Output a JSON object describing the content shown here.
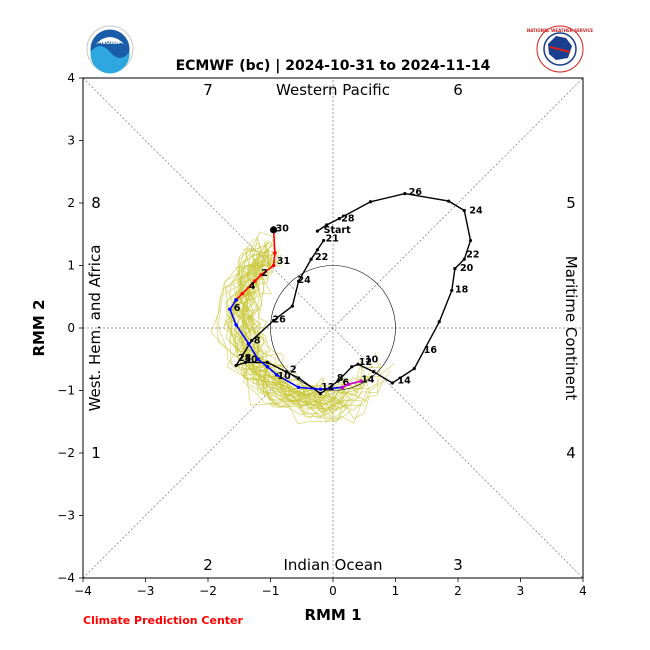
{
  "header": {
    "title": "ECMWF (bc) | 2024-10-31 to 2024-11-14"
  },
  "logos": {
    "left": {
      "icon": "noaa-logo-icon",
      "text": "NOAA"
    },
    "right": {
      "icon": "nws-logo-icon",
      "text": "NATIONAL WEATHER SERVICE"
    }
  },
  "footer": {
    "credit": "Climate Prediction Center",
    "credit_color": "#ff0000"
  },
  "chart_data": {
    "type": "line",
    "title": "ECMWF (bc) | 2024-10-31 to 2024-11-14",
    "xlabel": "RMM 1",
    "ylabel": "RMM 2",
    "xlim": [
      -4,
      4
    ],
    "ylim": [
      -4,
      4
    ],
    "xticks": [
      "−4",
      "−3",
      "−2",
      "−1",
      "0",
      "1",
      "2",
      "3",
      "4"
    ],
    "yticks": [
      "−4",
      "−3",
      "−2",
      "−1",
      "0",
      "1",
      "2",
      "3",
      "4"
    ],
    "grid": false,
    "unit_circle_radius": 1,
    "phase_numbers": [
      "1",
      "2",
      "3",
      "4",
      "5",
      "6",
      "7",
      "8"
    ],
    "region_labels": {
      "top": "Western Pacific",
      "bottom": "Indian Ocean",
      "left": "West. Hem. and Africa",
      "right": "Maritime Continent"
    },
    "observed": {
      "color": "#000000",
      "start_label": "Start",
      "points": [
        [
          -0.25,
          1.55
        ],
        [
          -0.1,
          1.65
        ],
        [
          0.1,
          1.75
        ],
        [
          0.6,
          2.02
        ],
        [
          1.15,
          2.15
        ],
        [
          1.85,
          2.03
        ],
        [
          2.1,
          1.88
        ],
        [
          2.2,
          1.4
        ],
        [
          2.1,
          1.1
        ],
        [
          1.95,
          0.95
        ],
        [
          1.9,
          0.6
        ],
        [
          1.7,
          0.1
        ],
        [
          1.3,
          -0.65
        ],
        [
          0.95,
          -0.88
        ],
        [
          0.65,
          -0.7
        ],
        [
          0.4,
          -0.58
        ],
        [
          0.3,
          -0.62
        ],
        [
          0.08,
          -0.85
        ],
        [
          -0.2,
          -1.05
        ],
        [
          -0.55,
          -0.8
        ],
        [
          -0.75,
          -0.7
        ],
        [
          -1.05,
          -0.55
        ],
        [
          -1.4,
          -0.55
        ],
        [
          -1.55,
          -0.6
        ],
        [
          -1.3,
          -0.2
        ],
        [
          -0.95,
          0.12
        ],
        [
          -0.65,
          0.35
        ],
        [
          -0.55,
          0.75
        ],
        [
          -0.35,
          1.1
        ],
        [
          -0.25,
          1.25
        ],
        [
          -0.15,
          1.4
        ]
      ],
      "day_labels": [
        {
          "text": "26",
          "x": 1.18,
          "y": 2.18
        },
        {
          "text": "24",
          "x": 2.15,
          "y": 1.88
        },
        {
          "text": "22",
          "x": 2.1,
          "y": 1.18
        },
        {
          "text": "20",
          "x": 2.0,
          "y": 0.96
        },
        {
          "text": "18",
          "x": 1.92,
          "y": 0.62
        },
        {
          "text": "16",
          "x": 1.42,
          "y": -0.35
        },
        {
          "text": "14",
          "x": 1.0,
          "y": -0.84
        },
        {
          "text": "12",
          "x": 0.38,
          "y": -0.54
        },
        {
          "text": "10",
          "x": 0.48,
          "y": -0.5
        },
        {
          "text": "8",
          "x": 0.03,
          "y": -0.8
        },
        {
          "text": "6",
          "x": 0.12,
          "y": -0.87
        },
        {
          "text": "2",
          "x": -0.72,
          "y": -0.66
        },
        {
          "text": "30",
          "x": -1.45,
          "y": -0.5
        },
        {
          "text": "28",
          "x": -1.55,
          "y": -0.48
        },
        {
          "text": "26",
          "x": -1.0,
          "y": 0.14
        },
        {
          "text": "24",
          "x": -0.6,
          "y": 0.77
        },
        {
          "text": "22",
          "x": -0.32,
          "y": 1.14
        },
        {
          "text": "21",
          "x": -0.15,
          "y": 1.43
        },
        {
          "text": "28",
          "x": 0.1,
          "y": 1.75
        },
        {
          "text": "30",
          "x": -0.95,
          "y": 1.59
        }
      ]
    },
    "forecast_segments": [
      {
        "color": "#ff0000",
        "points": [
          [
            -0.95,
            1.57
          ],
          [
            -0.93,
            1.2
          ],
          [
            -0.95,
            1.0
          ],
          [
            -1.15,
            0.85
          ],
          [
            -1.25,
            0.75
          ],
          [
            -1.45,
            0.55
          ],
          [
            -1.55,
            0.45
          ]
        ],
        "labels": [
          {
            "text": "31",
            "x": -0.93,
            "y": 1.07
          },
          {
            "text": "2",
            "x": -1.18,
            "y": 0.88
          },
          {
            "text": "4",
            "x": -1.38,
            "y": 0.67
          }
        ]
      },
      {
        "color": "#0000ff",
        "points": [
          [
            -1.55,
            0.45
          ],
          [
            -1.65,
            0.3
          ],
          [
            -1.55,
            0.05
          ],
          [
            -1.35,
            -0.25
          ],
          [
            -1.2,
            -0.5
          ],
          [
            -1.05,
            -0.62
          ],
          [
            -0.9,
            -0.75
          ],
          [
            -0.55,
            -0.95
          ],
          [
            -0.2,
            -0.98
          ],
          [
            0.15,
            -0.95
          ]
        ],
        "labels": [
          {
            "text": "6",
            "x": -1.62,
            "y": 0.32
          },
          {
            "text": "8",
            "x": -1.3,
            "y": -0.2
          },
          {
            "text": "10",
            "x": -0.92,
            "y": -0.77
          },
          {
            "text": "12",
            "x": -0.22,
            "y": -0.94
          }
        ]
      },
      {
        "color": "#cc00cc",
        "points": [
          [
            0.15,
            -0.95
          ],
          [
            0.25,
            -0.9
          ],
          [
            0.45,
            -0.85
          ]
        ],
        "labels": [
          {
            "text": "14",
            "x": 0.42,
            "y": -0.82
          }
        ]
      }
    ],
    "ensemble": {
      "color": "#c9c83a",
      "member_count": 50
    }
  }
}
